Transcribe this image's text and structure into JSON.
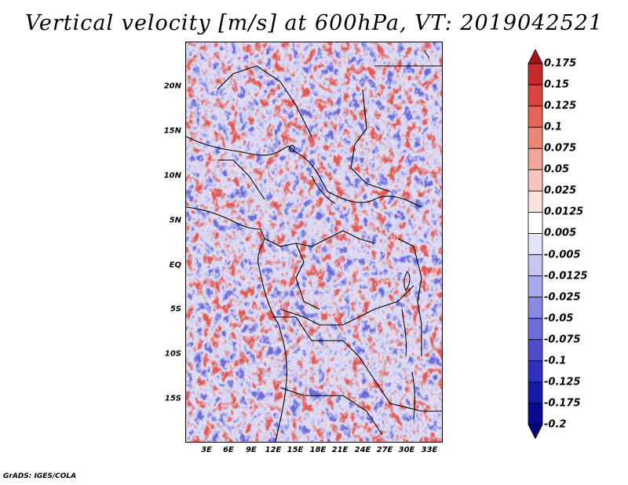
{
  "title": "Vertical velocity [m/s] at 600hPa, VT: 2019042521",
  "credit": "GrADS: IGES/COLA",
  "map": {
    "projection": "lat-lon",
    "variable": "Vertical velocity",
    "units": "m/s",
    "level": "600hPa",
    "valid_time": "2019042521",
    "lat_labels": [
      "20N",
      "15N",
      "10N",
      "5N",
      "EQ",
      "5S",
      "10S",
      "15S"
    ],
    "lon_labels": [
      "3E",
      "6E",
      "9E",
      "12E",
      "15E",
      "18E",
      "21E",
      "24E",
      "27E",
      "30E",
      "33E"
    ]
  },
  "colorbar": {
    "labels": [
      "0.175",
      "0.15",
      "0.125",
      "0.1",
      "0.075",
      "0.05",
      "0.025",
      "0.0125",
      "0.005",
      "-0.005",
      "-0.0125",
      "-0.025",
      "-0.05",
      "-0.075",
      "-0.1",
      "-0.125",
      "-0.175",
      "-0.2"
    ],
    "colors": [
      "#a51419",
      "#c42a28",
      "#d9453e",
      "#e46457",
      "#ec8576",
      "#f2a699",
      "#f7c7bd",
      "#fbe3dd",
      "#ffffff",
      "#e2e2f8",
      "#c6c6f1",
      "#a8a8ea",
      "#8a8ae2",
      "#6c6cd8",
      "#4d4dcc",
      "#3030bd",
      "#1818a8",
      "#0a0a90",
      "#06067a"
    ]
  }
}
